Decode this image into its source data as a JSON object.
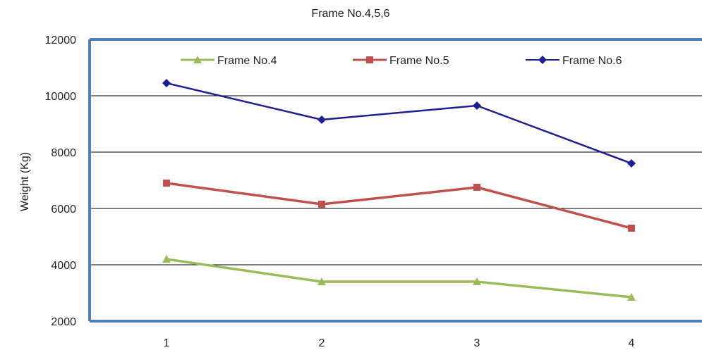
{
  "chart_data": {
    "type": "line",
    "title": "Frame No.4,5,6",
    "ylabel": "Weight (Kg)",
    "xlabel": "",
    "categories": [
      "1",
      "2",
      "3",
      "4"
    ],
    "ylim": [
      2000,
      12000
    ],
    "yticks": [
      2000,
      4000,
      6000,
      8000,
      10000,
      12000
    ],
    "ytick_labels": [
      "2000",
      "4000",
      "6000",
      "8000",
      "10000",
      "12000"
    ],
    "grid": true,
    "legend_position": "top",
    "series": [
      {
        "name": "Frame No.4",
        "color": "#9BBB59",
        "marker": "triangle",
        "values": [
          4200,
          3400,
          3400,
          2850
        ]
      },
      {
        "name": "Frame No.5",
        "color": "#C0504D",
        "marker": "square",
        "values": [
          6900,
          6150,
          6750,
          5300
        ]
      },
      {
        "name": "Frame No.6",
        "color": "#1F1F8F",
        "marker": "diamond",
        "values": [
          10450,
          9150,
          9650,
          7600
        ]
      }
    ],
    "colors": {
      "axis": "#4F81BD",
      "grid": "#000000",
      "text": "#222222"
    }
  }
}
